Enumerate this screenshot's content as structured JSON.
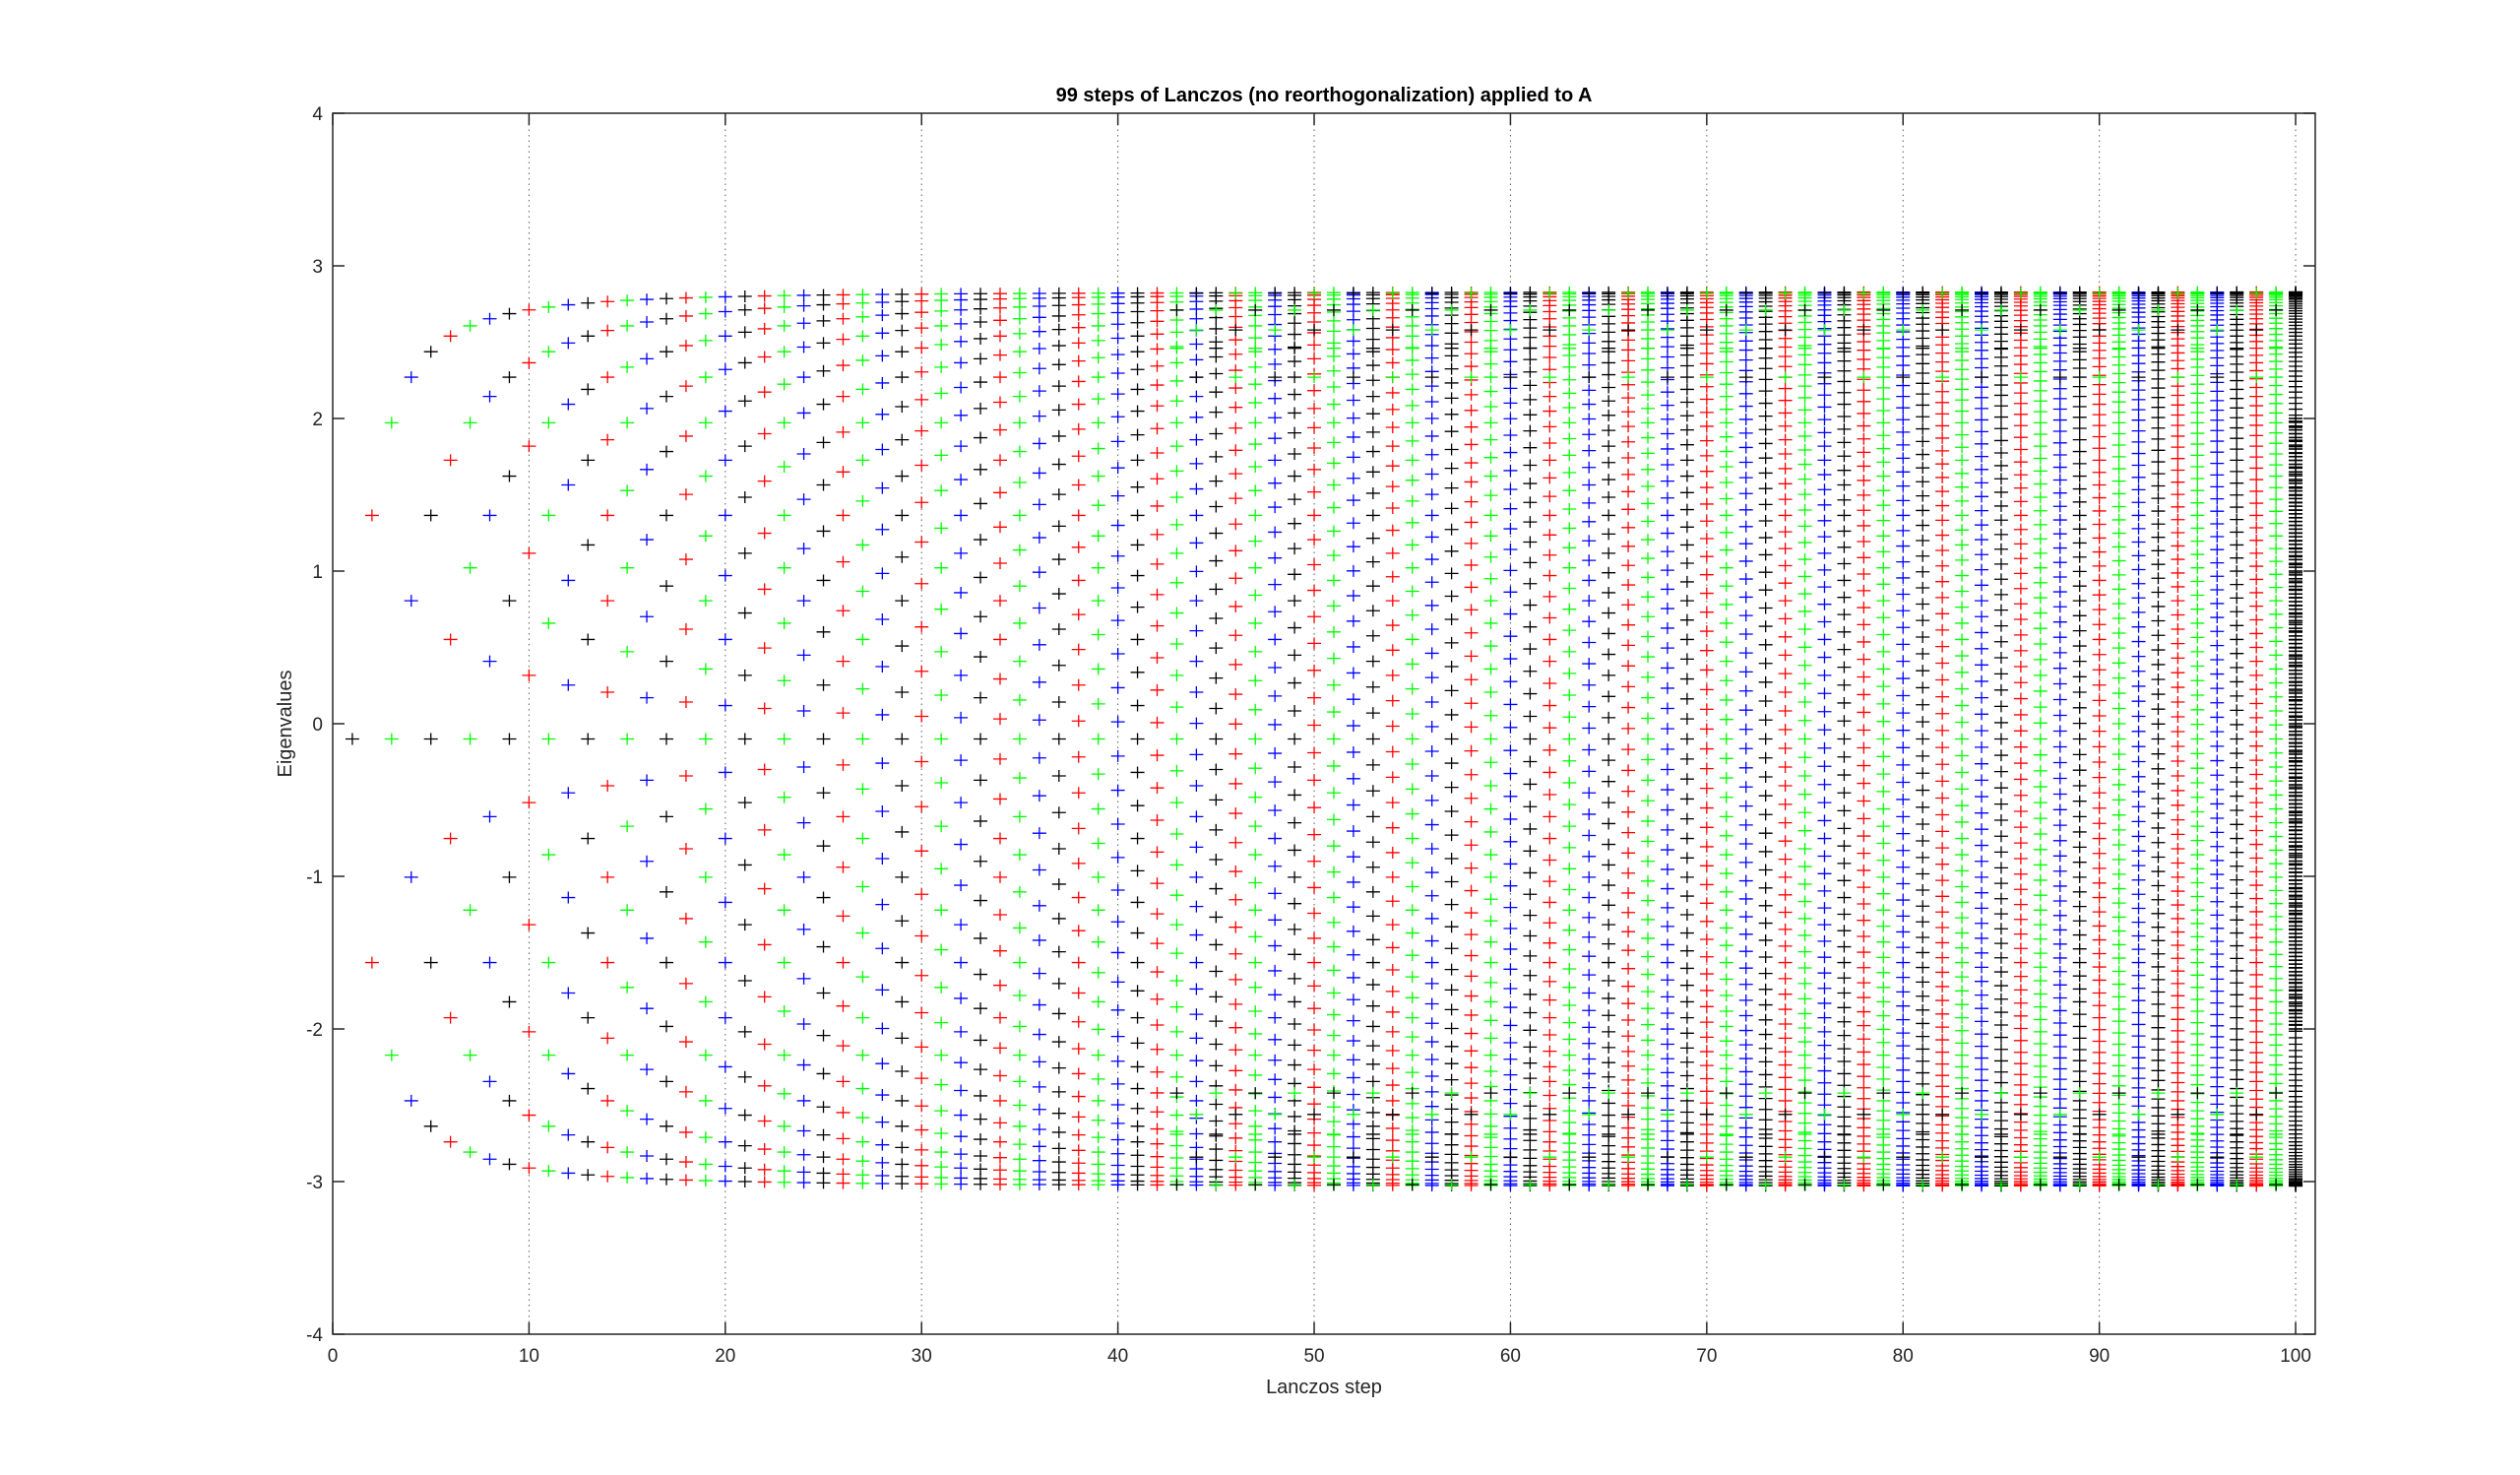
{
  "chart_data": {
    "type": "scatter",
    "title": "99 steps of Lanczos (no reorthogonalization) applied to A",
    "xlabel": "Lanczos step",
    "ylabel": "Eigenvalues",
    "xlim": [
      0,
      101
    ],
    "ylim": [
      -4,
      4
    ],
    "xticks": [
      0,
      10,
      20,
      30,
      40,
      50,
      60,
      70,
      80,
      90,
      100
    ],
    "yticks": [
      -4,
      -3,
      -2,
      -1,
      0,
      1,
      2,
      3,
      4
    ],
    "x_gridlines": "dotted at multiples of 10",
    "marker": "+",
    "step_colors": [
      "#000000",
      "#ff0000",
      "#00ff00",
      "#0000ff"
    ],
    "steps": {
      "first": 1,
      "last": 99,
      "final_step": 100
    },
    "spectrum_max": 2.83,
    "spectrum_min": -3.03,
    "ghost_values": [
      2.83,
      2.7,
      2.59,
      2.45,
      2.28,
      -2.43,
      -2.55,
      -2.7,
      -2.83,
      -3.03
    ],
    "final_step_note": "dense cluster of converged eigenvalues near x = 100 between -2 and 2"
  }
}
